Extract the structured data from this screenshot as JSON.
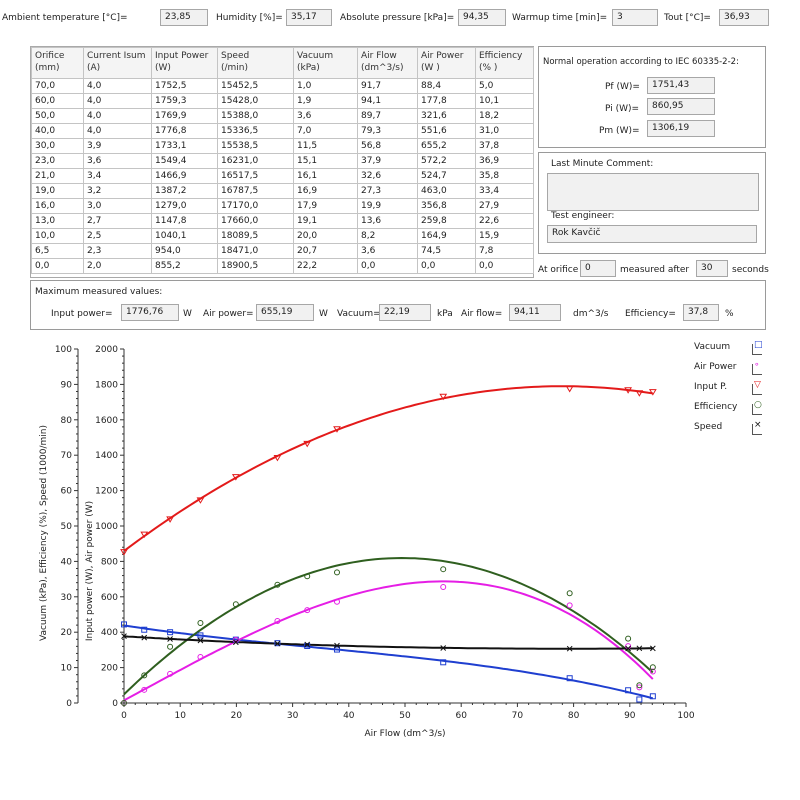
{
  "top_bar": {
    "ambient_label": "Ambient temperature [°C]=",
    "ambient_value": "23,85",
    "humidity_label": "Humidity [%]=",
    "humidity_value": "35,17",
    "pressure_label": "Absolute pressure [kPa]=",
    "pressure_value": "94,35",
    "warmup_label": "Warmup time [min]=",
    "warmup_value": "3",
    "tout_label": "Tout [°C]=",
    "tout_value": "36,93"
  },
  "table": {
    "headers": [
      [
        "Orifice",
        "(mm)"
      ],
      [
        "Current Isum",
        "(A)"
      ],
      [
        "Input Power",
        "(W)"
      ],
      [
        "Speed",
        "(/min)"
      ],
      [
        "Vacuum",
        "(kPa)"
      ],
      [
        "Air Flow",
        "(dm^3/s)"
      ],
      [
        "Air Power",
        "(W )"
      ],
      [
        "Efficiency",
        "(% )"
      ]
    ],
    "rows": [
      [
        "70,0",
        "4,0",
        "1752,5",
        "15452,5",
        "1,0",
        "91,7",
        "88,4",
        "5,0"
      ],
      [
        "60,0",
        "4,0",
        "1759,3",
        "15428,0",
        "1,9",
        "94,1",
        "177,8",
        "10,1"
      ],
      [
        "50,0",
        "4,0",
        "1769,9",
        "15388,0",
        "3,6",
        "89,7",
        "321,6",
        "18,2"
      ],
      [
        "40,0",
        "4,0",
        "1776,8",
        "15336,5",
        "7,0",
        "79,3",
        "551,6",
        "31,0"
      ],
      [
        "30,0",
        "3,9",
        "1733,1",
        "15538,5",
        "11,5",
        "56,8",
        "655,2",
        "37,8"
      ],
      [
        "23,0",
        "3,6",
        "1549,4",
        "16231,0",
        "15,1",
        "37,9",
        "572,2",
        "36,9"
      ],
      [
        "21,0",
        "3,4",
        "1466,9",
        "16517,5",
        "16,1",
        "32,6",
        "524,7",
        "35,8"
      ],
      [
        "19,0",
        "3,2",
        "1387,2",
        "16787,5",
        "16,9",
        "27,3",
        "463,0",
        "33,4"
      ],
      [
        "16,0",
        "3,0",
        "1279,0",
        "17170,0",
        "17,9",
        "19,9",
        "356,8",
        "27,9"
      ],
      [
        "13,0",
        "2,7",
        "1147,8",
        "17660,0",
        "19,1",
        "13,6",
        "259,8",
        "22,6"
      ],
      [
        "10,0",
        "2,5",
        "1040,1",
        "18089,5",
        "20,0",
        "8,2",
        "164,9",
        "15,9"
      ],
      [
        "6,5",
        "2,3",
        "954,0",
        "18471,0",
        "20,7",
        "3,6",
        "74,5",
        "7,8"
      ],
      [
        "0,0",
        "2,0",
        "855,2",
        "18900,5",
        "22,2",
        "0,0",
        "0,0",
        "0,0"
      ]
    ]
  },
  "normal_op": {
    "title": "Normal operation according to IEC 60335-2-2:",
    "pf_label": "Pf (W)=",
    "pf_value": "1751,43",
    "pi_label": "Pi (W)=",
    "pi_value": "860,95",
    "pm_label": "Pm (W)=",
    "pm_value": "1306,19"
  },
  "comment": {
    "title": "Last Minute Comment:",
    "text": "",
    "engineer_label": "Test engineer:",
    "engineer_value": "Rok Kavčič"
  },
  "orifice_line": {
    "at_label": "At orifice",
    "orifice_value": "0",
    "after_label": "measured after",
    "seconds_value": "30",
    "seconds_label": "seconds"
  },
  "max_values": {
    "title": "Maximum measured values:",
    "input_label": "Input power=",
    "input_value": "1776,76",
    "input_unit": "W",
    "air_label": "Air power=",
    "air_value": "655,19",
    "air_unit": "W",
    "vacuum_label": "Vacuum=",
    "vacuum_value": "22,19",
    "vacuum_unit": "kPa",
    "flow_label": "Air flow=",
    "flow_value": "94,11",
    "flow_unit": "dm^3/s",
    "eff_label": "Efficiency=",
    "eff_value": "37,8",
    "eff_unit": "%"
  },
  "chart_data": {
    "type": "scatter",
    "xlabel": "Air Flow  (dm^3/s)",
    "ylabel_left": "Vacuum (kPa), Efficiency (%), Speed (1000/min)",
    "ylabel_right": "Input power (W), Air power (W)",
    "xlim": [
      0,
      100
    ],
    "xticks": [
      "0",
      "10",
      "20",
      "30",
      "40",
      "50",
      "60",
      "70",
      "80",
      "90",
      "100"
    ],
    "ylim_left": [
      0,
      100
    ],
    "yticks_left": [
      "0",
      "10",
      "20",
      "30",
      "40",
      "50",
      "60",
      "70",
      "80",
      "90",
      "100"
    ],
    "ylim_right": [
      0,
      2000
    ],
    "yticks_right": [
      "0",
      "200",
      "400",
      "600",
      "800",
      "1000",
      "1200",
      "1400",
      "1600",
      "1800",
      "2000"
    ],
    "series": [
      {
        "name": "Vacuum",
        "color": "#1f3fd0",
        "marker": "square",
        "x": [
          0.0,
          3.6,
          8.2,
          13.6,
          19.9,
          27.3,
          32.6,
          37.9,
          56.8,
          79.3,
          89.7,
          94.1,
          91.7
        ],
        "y": [
          22.2,
          20.7,
          20.0,
          19.1,
          17.9,
          16.9,
          16.1,
          15.1,
          11.5,
          7.0,
          3.6,
          1.9,
          1.0
        ]
      },
      {
        "name": "Air Power",
        "color": "#e51ee5",
        "marker": "circle",
        "x": [
          0.0,
          3.6,
          8.2,
          13.6,
          19.9,
          27.3,
          32.6,
          37.9,
          56.8,
          79.3,
          89.7,
          94.1,
          91.7
        ],
        "y": [
          0.0,
          74.5,
          164.9,
          259.8,
          356.8,
          463.0,
          524.7,
          572.2,
          655.2,
          551.6,
          321.6,
          177.8,
          88.4
        ]
      },
      {
        "name": "Input P.",
        "color": "#e31a1a",
        "marker": "triangle",
        "x": [
          0.0,
          3.6,
          8.2,
          13.6,
          19.9,
          27.3,
          32.6,
          37.9,
          56.8,
          79.3,
          89.7,
          94.1,
          91.7
        ],
        "y": [
          855.2,
          954.0,
          1040.1,
          1147.8,
          1279.0,
          1387.2,
          1466.9,
          1549.4,
          1733.1,
          1776.8,
          1769.9,
          1759.3,
          1752.5
        ]
      },
      {
        "name": "Efficiency",
        "color": "#2f5f1f",
        "marker": "circle-open",
        "x": [
          0.0,
          3.6,
          8.2,
          13.6,
          19.9,
          27.3,
          32.6,
          37.9,
          56.8,
          79.3,
          89.7,
          94.1,
          91.7
        ],
        "y": [
          0.0,
          7.8,
          15.9,
          22.6,
          27.9,
          33.4,
          35.8,
          36.9,
          37.8,
          31.0,
          18.2,
          10.1,
          5.0
        ]
      },
      {
        "name": "Speed",
        "color": "#111111",
        "marker": "x",
        "x": [
          0.0,
          3.6,
          8.2,
          13.6,
          19.9,
          27.3,
          32.6,
          37.9,
          56.8,
          79.3,
          89.7,
          94.1,
          91.7
        ],
        "y": [
          18.9,
          18.47,
          18.09,
          17.66,
          17.17,
          16.79,
          16.52,
          16.23,
          15.54,
          15.34,
          15.39,
          15.43,
          15.45
        ]
      }
    ],
    "legend_position": "right"
  }
}
